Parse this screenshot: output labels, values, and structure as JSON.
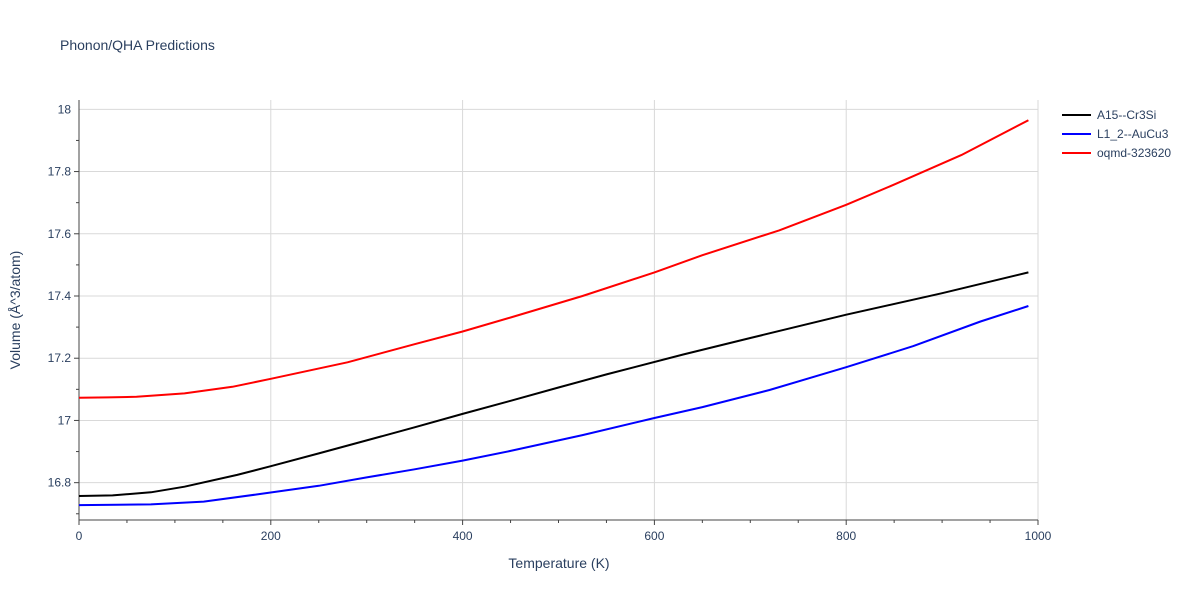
{
  "chart_data": {
    "type": "line",
    "title": "Phonon/QHA Predictions",
    "xlabel": "Temperature (K)",
    "ylabel": "Volume (Å^3/atom)",
    "xlim": [
      0,
      1000
    ],
    "ylim": [
      16.68,
      18.03
    ],
    "x_ticks": [
      0,
      200,
      400,
      600,
      800,
      1000
    ],
    "y_ticks": [
      16.8,
      17,
      17.2,
      17.4,
      17.6,
      17.8,
      18
    ],
    "x_tick_labels": [
      "0",
      "200",
      "400",
      "600",
      "800",
      "1000"
    ],
    "y_tick_labels": [
      "16.8",
      "17",
      "17.2",
      "17.4",
      "17.6",
      "17.8",
      "18"
    ],
    "grid": true,
    "legend_position": "top-right, outside plot",
    "series": [
      {
        "name": "A15--Cr3Si",
        "color": "#000000",
        "points": [
          [
            0,
            16.757
          ],
          [
            35,
            16.759
          ],
          [
            75,
            16.769
          ],
          [
            110,
            16.787
          ],
          [
            165,
            16.825
          ],
          [
            200,
            16.853
          ],
          [
            250,
            16.894
          ],
          [
            300,
            16.936
          ],
          [
            350,
            16.978
          ],
          [
            400,
            17.021
          ],
          [
            450,
            17.063
          ],
          [
            500,
            17.106
          ],
          [
            550,
            17.148
          ],
          [
            630,
            17.212
          ],
          [
            700,
            17.265
          ],
          [
            800,
            17.34
          ],
          [
            900,
            17.409
          ],
          [
            990,
            17.476
          ]
        ]
      },
      {
        "name": "L1_2--AuCu3",
        "color": "#0000ff",
        "points": [
          [
            0,
            16.728
          ],
          [
            40,
            16.729
          ],
          [
            75,
            16.73
          ],
          [
            130,
            16.739
          ],
          [
            185,
            16.762
          ],
          [
            250,
            16.79
          ],
          [
            300,
            16.817
          ],
          [
            350,
            16.843
          ],
          [
            400,
            16.871
          ],
          [
            450,
            16.902
          ],
          [
            525,
            16.953
          ],
          [
            600,
            17.008
          ],
          [
            650,
            17.043
          ],
          [
            720,
            17.098
          ],
          [
            800,
            17.171
          ],
          [
            870,
            17.239
          ],
          [
            940,
            17.318
          ],
          [
            990,
            17.368
          ]
        ]
      },
      {
        "name": "oqmd-323620",
        "color": "#ff0000",
        "points": [
          [
            0,
            17.073
          ],
          [
            30,
            17.074
          ],
          [
            60,
            17.076
          ],
          [
            110,
            17.087
          ],
          [
            160,
            17.108
          ],
          [
            200,
            17.134
          ],
          [
            280,
            17.187
          ],
          [
            350,
            17.245
          ],
          [
            400,
            17.286
          ],
          [
            450,
            17.331
          ],
          [
            525,
            17.4
          ],
          [
            600,
            17.476
          ],
          [
            650,
            17.531
          ],
          [
            730,
            17.611
          ],
          [
            800,
            17.693
          ],
          [
            850,
            17.758
          ],
          [
            920,
            17.853
          ],
          [
            990,
            17.965
          ]
        ]
      }
    ]
  }
}
